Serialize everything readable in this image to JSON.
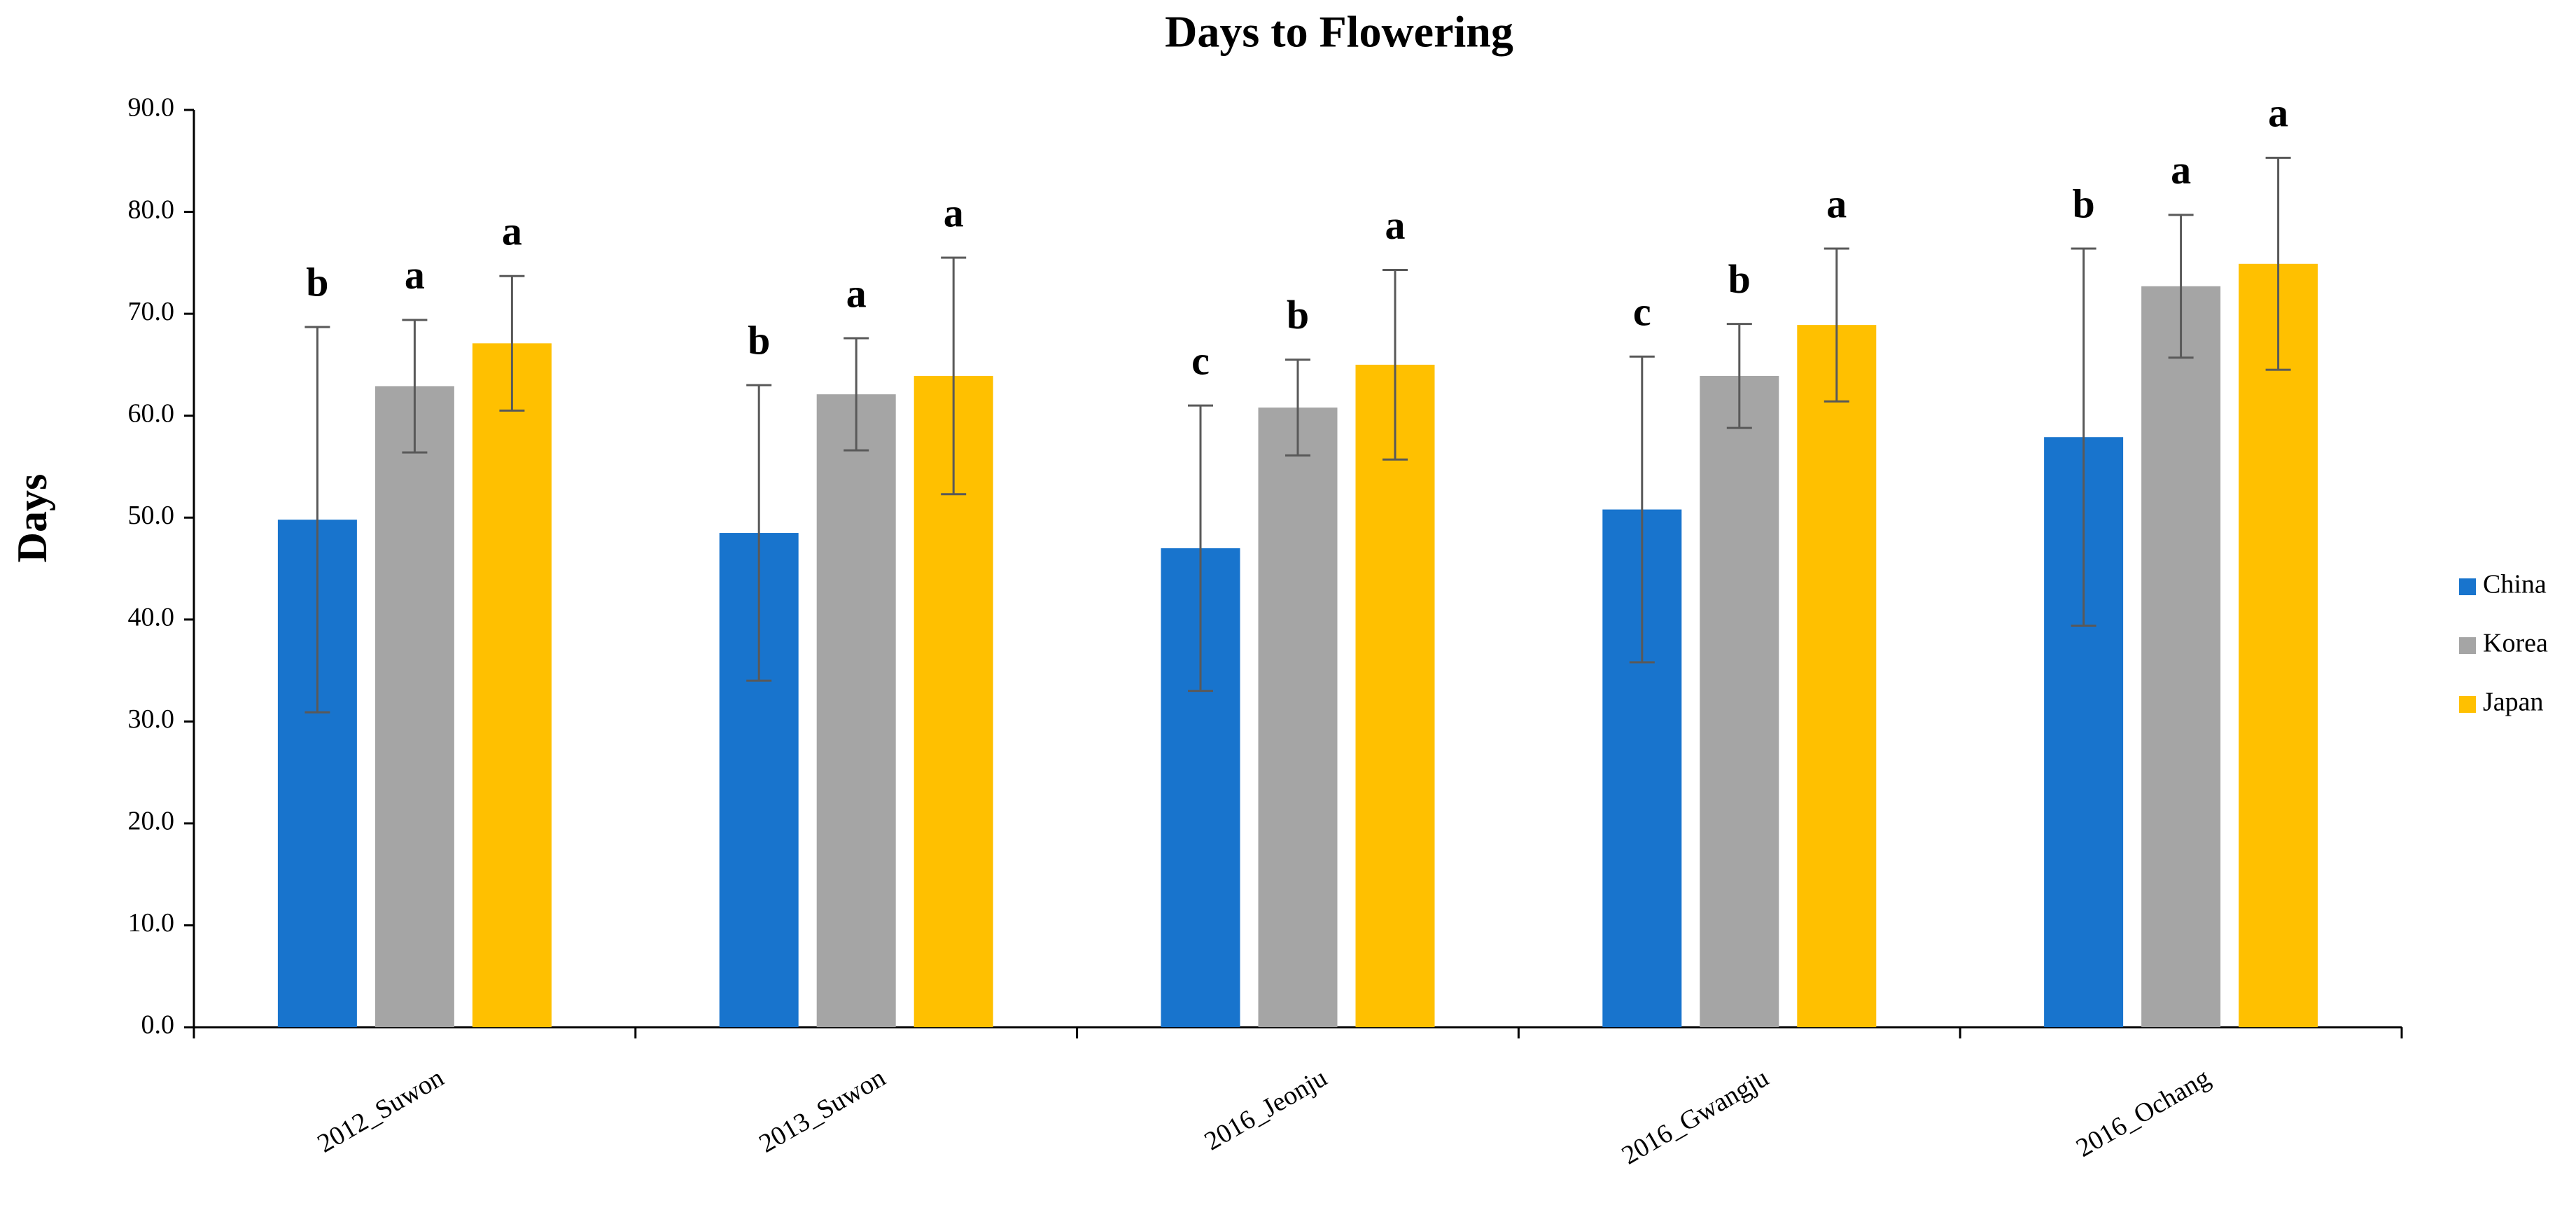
{
  "chart_data": {
    "type": "bar",
    "title": "Days to Flowering",
    "y_label": "Days",
    "categories": [
      "2012_Suwon",
      "2013_Suwon",
      "2016_Jeonju",
      "2016_Gwangju",
      "2016_Ochang"
    ],
    "series": [
      {
        "name": "China",
        "color": "#1874cd",
        "values": [
          49.8,
          48.5,
          47.0,
          50.8,
          57.9
        ],
        "errors": [
          18.9,
          14.5,
          14.0,
          15.0,
          18.5
        ],
        "letters": [
          "b",
          "b",
          "c",
          "c",
          "b"
        ]
      },
      {
        "name": "Korea",
        "color": "#a5a5a5",
        "values": [
          62.9,
          62.1,
          60.8,
          63.9,
          72.7
        ],
        "errors": [
          6.5,
          5.5,
          4.7,
          5.1,
          7.0
        ],
        "letters": [
          "a",
          "a",
          "b",
          "b",
          "a"
        ]
      },
      {
        "name": "Japan",
        "color": "#ffc000",
        "values": [
          67.1,
          63.9,
          65.0,
          68.9,
          74.9
        ],
        "errors": [
          6.6,
          11.6,
          9.3,
          7.5,
          10.4
        ],
        "letters": [
          "a",
          "a",
          "a",
          "a",
          "a"
        ]
      }
    ],
    "ylim": [
      0,
      90
    ],
    "yticks": [
      {
        "value": 0,
        "label": "0.0"
      },
      {
        "value": 10,
        "label": "10.0"
      },
      {
        "value": 20,
        "label": "20.0"
      },
      {
        "value": 30,
        "label": "30.0"
      },
      {
        "value": 40,
        "label": "40.0"
      },
      {
        "value": 50,
        "label": "50.0"
      },
      {
        "value": 60,
        "label": "60.0"
      },
      {
        "value": 70,
        "label": "70.0"
      },
      {
        "value": 80,
        "label": "80.0"
      },
      {
        "value": 90,
        "label": "90.0"
      }
    ],
    "legend": "right"
  }
}
